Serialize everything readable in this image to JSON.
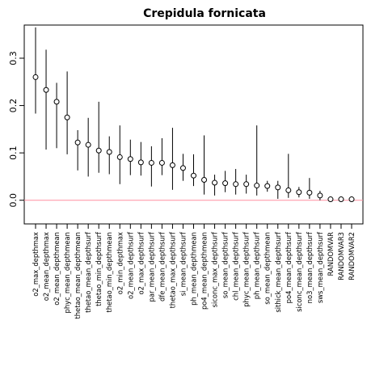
{
  "chart_data": {
    "type": "scatter",
    "title": "Crepidula fornicata",
    "xlabel": "",
    "ylabel": "",
    "ylim": [
      -0.05,
      0.37
    ],
    "yticks": [
      0.0,
      0.1,
      0.2,
      0.3
    ],
    "ytick_labels": [
      "0.0",
      "0.1",
      "0.2",
      "0.3"
    ],
    "reference_line": {
      "y": 0.0,
      "color": "#ff8fa0"
    },
    "grid": false,
    "legend": "none",
    "categories": [
      "o2_max_depthmax",
      "o2_mean_depthmax",
      "o2_mean_depthmean",
      "phyc_mean_depthmean",
      "thetao_mean_depthmean",
      "thetao_mean_depthsurf",
      "thetao_min_depthsurf",
      "thetao_min_depthmean",
      "o2_min_depthmax",
      "o2_mean_depthsurf",
      "o2_max_depthsurf",
      "par_mean_depthsurf",
      "dfe_mean_depthsurf",
      "thetao_max_depthsurf",
      "si_mean_depthsurf",
      "ph_mean_depthmean",
      "po4_mean_depthmean",
      "siconc_max_depthsurf",
      "so_mean_depthsurf",
      "chl_mean_depthsurf",
      "phyc_mean_depthsurf",
      "ph_mean_depthsurf",
      "so_mean_depthmean",
      "sithick_mean_depthsurf",
      "po4_mean_depthsurf",
      "siconc_mean_depthsurf",
      "no3_mean_depthsurf",
      "sws_mean_depthsurf",
      "RANDOMVAR",
      "RANDOMVAR3",
      "RANDOMVAR2"
    ],
    "values": [
      0.26,
      0.233,
      0.208,
      0.175,
      0.122,
      0.117,
      0.105,
      0.102,
      0.091,
      0.087,
      0.08,
      0.079,
      0.079,
      0.074,
      0.068,
      0.052,
      0.043,
      0.037,
      0.036,
      0.034,
      0.034,
      0.031,
      0.03,
      0.027,
      0.021,
      0.017,
      0.016,
      0.01,
      0.002,
      0.002,
      0.002
    ],
    "lower": [
      0.183,
      0.107,
      0.11,
      0.097,
      0.063,
      0.05,
      0.058,
      0.055,
      0.034,
      0.053,
      0.052,
      0.029,
      0.053,
      0.022,
      0.041,
      0.03,
      0.012,
      0.01,
      0.017,
      0.012,
      0.014,
      0.01,
      0.018,
      0.003,
      0.005,
      0.006,
      0.003,
      0.0,
      0.0,
      0.0,
      0.0
    ],
    "upper": [
      0.365,
      0.318,
      0.248,
      0.272,
      0.148,
      0.174,
      0.208,
      0.135,
      0.158,
      0.128,
      0.123,
      0.114,
      0.131,
      0.153,
      0.098,
      0.097,
      0.137,
      0.054,
      0.062,
      0.066,
      0.054,
      0.158,
      0.041,
      0.041,
      0.098,
      0.028,
      0.047,
      0.02,
      0.004,
      0.004,
      0.004
    ],
    "marker": "open-circle",
    "colors": {
      "points": "#000000",
      "axis": "#000000",
      "reference": "#ff8fa0"
    }
  }
}
